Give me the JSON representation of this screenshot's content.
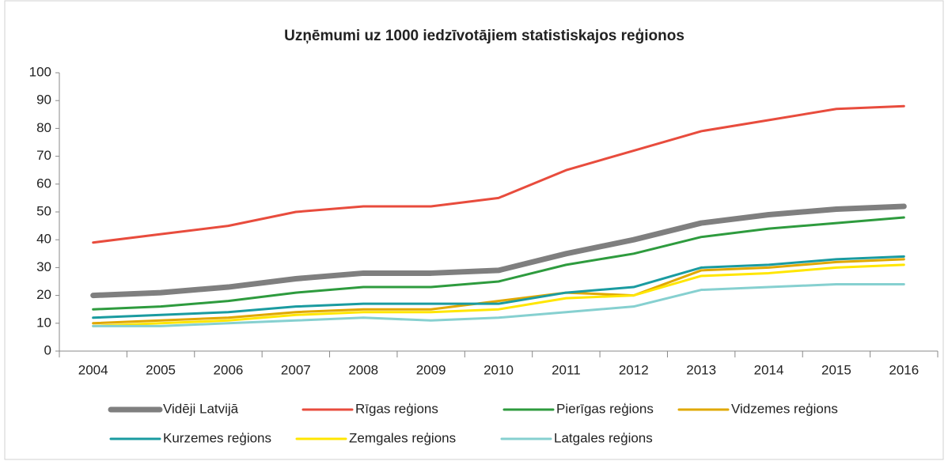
{
  "chart_data": {
    "type": "line",
    "title": "Uzņēmumi uz 1000 iedzīvotājiem statistiskajos reģionos",
    "categories": [
      "2004",
      "2005",
      "2006",
      "2007",
      "2008",
      "2009",
      "2010",
      "2011",
      "2012",
      "2013",
      "2014",
      "2015",
      "2016"
    ],
    "series": [
      {
        "name": "Vidēji Latvijā",
        "color": "#7f7f7f",
        "values": [
          20,
          21,
          23,
          26,
          28,
          28,
          29,
          35,
          40,
          46,
          49,
          51,
          52
        ]
      },
      {
        "name": "Rīgas reģions",
        "color": "#e84c3d",
        "values": [
          39,
          42,
          45,
          50,
          52,
          52,
          55,
          65,
          72,
          79,
          83,
          87,
          88
        ]
      },
      {
        "name": "Pierīgas reģions",
        "color": "#2e9b3e",
        "values": [
          15,
          16,
          18,
          21,
          23,
          23,
          25,
          31,
          35,
          41,
          44,
          46,
          48
        ]
      },
      {
        "name": "Vidzemes reģions",
        "color": "#e0a800",
        "values": [
          10,
          11,
          12,
          14,
          15,
          15,
          18,
          21,
          20,
          29,
          30,
          32,
          33
        ]
      },
      {
        "name": "Kurzemes reģions",
        "color": "#1a9ba0",
        "values": [
          12,
          13,
          14,
          16,
          17,
          17,
          17,
          21,
          23,
          30,
          31,
          33,
          34
        ]
      },
      {
        "name": "Zemgales reģions",
        "color": "#ffe600",
        "values": [
          9,
          10,
          11,
          13,
          14,
          14,
          15,
          19,
          20,
          27,
          28,
          30,
          31
        ]
      },
      {
        "name": "Latgales reģions",
        "color": "#86d0d0",
        "values": [
          9,
          9,
          10,
          11,
          12,
          11,
          12,
          14,
          16,
          22,
          23,
          24,
          24
        ]
      }
    ],
    "ylim": [
      0,
      100
    ],
    "yticks": [
      0,
      10,
      20,
      30,
      40,
      50,
      60,
      70,
      80,
      90,
      100
    ],
    "grid": false
  }
}
